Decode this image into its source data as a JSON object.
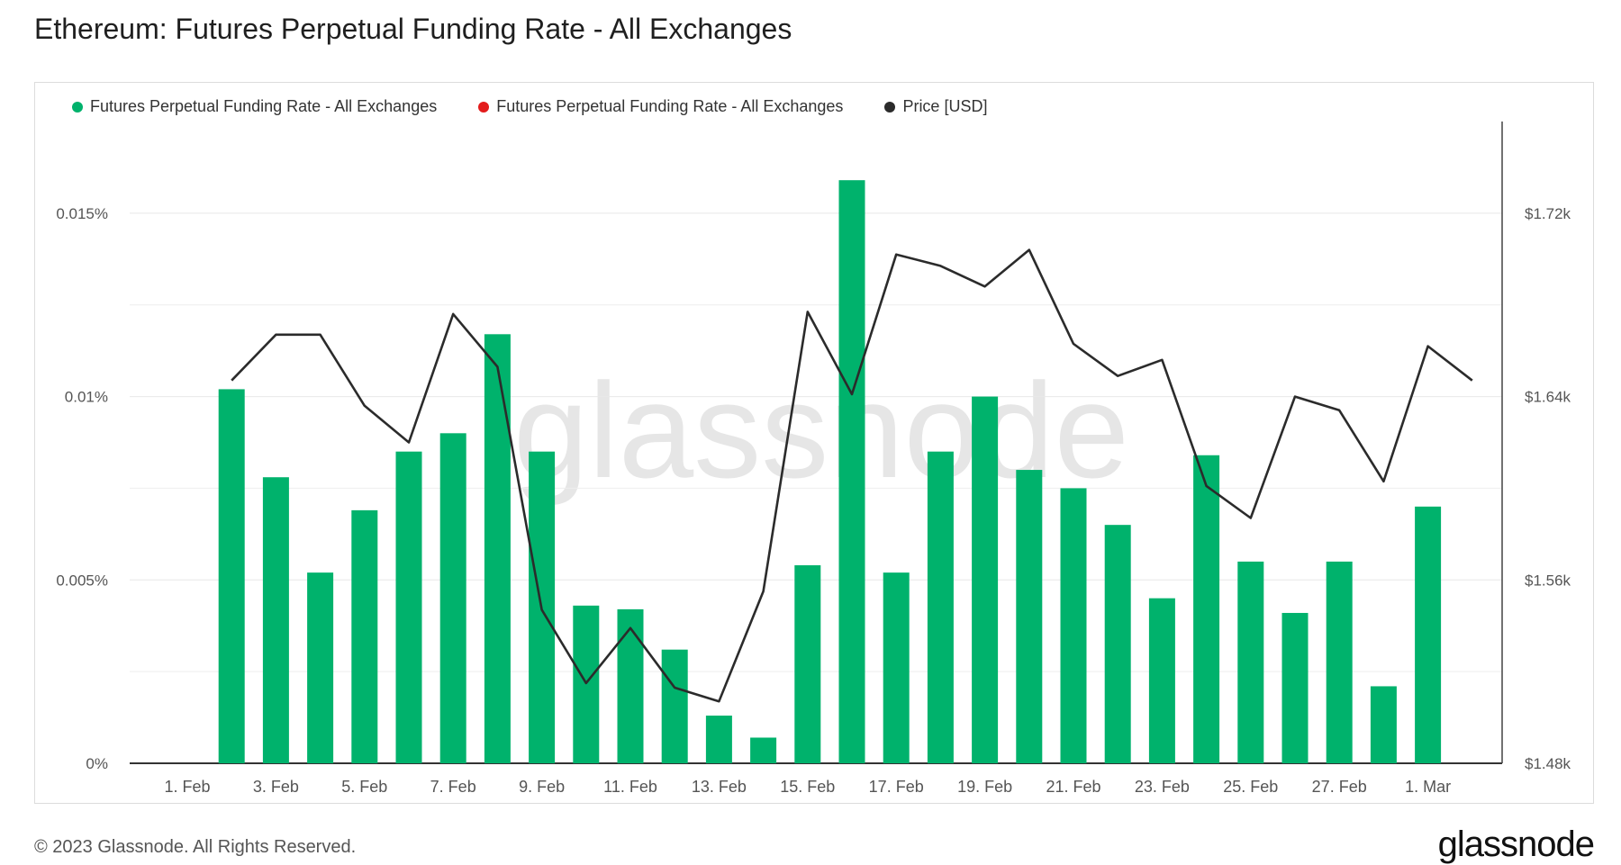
{
  "title": "Ethereum: Futures Perpetual Funding Rate - All Exchanges",
  "footer": "© 2023 Glassnode. All Rights Reserved.",
  "brand": "glassnode",
  "watermark": "glassnode",
  "legend": [
    {
      "label": "Futures Perpetual Funding Rate - All Exchanges",
      "color": "#00b26c"
    },
    {
      "label": "Futures Perpetual Funding Rate - All Exchanges",
      "color": "#e31c1c"
    },
    {
      "label": "Price [USD]",
      "color": "#2b2b2b"
    }
  ],
  "chart_data": {
    "type": "bar",
    "x_ticks": [
      "1. Feb",
      "3. Feb",
      "5. Feb",
      "7. Feb",
      "9. Feb",
      "11. Feb",
      "13. Feb",
      "15. Feb",
      "17. Feb",
      "19. Feb",
      "21. Feb",
      "23. Feb",
      "25. Feb",
      "27. Feb",
      "1. Mar"
    ],
    "y_left": {
      "ticks": [
        "0%",
        "0.005%",
        "0.01%",
        "0.015%"
      ],
      "min": 0,
      "max": 0.0175
    },
    "y_right": {
      "ticks": [
        "$1.48k",
        "$1.56k",
        "$1.64k",
        "$1.72k"
      ],
      "min": 1480,
      "max": 1760
    },
    "dates": [
      "1. Feb",
      "2. Feb",
      "3. Feb",
      "4. Feb",
      "5. Feb",
      "6. Feb",
      "7. Feb",
      "8. Feb",
      "9. Feb",
      "10. Feb",
      "11. Feb",
      "12. Feb",
      "13. Feb",
      "14. Feb",
      "15. Feb",
      "16. Feb",
      "17. Feb",
      "18. Feb",
      "19. Feb",
      "20. Feb",
      "21. Feb",
      "22. Feb",
      "23. Feb",
      "24. Feb",
      "25. Feb",
      "26. Feb",
      "27. Feb",
      "28. Feb",
      "1. Mar",
      "2. Mar"
    ],
    "series": [
      {
        "name": "Futures Perpetual Funding Rate - All Exchanges",
        "type": "bar",
        "color": "#00b26c",
        "axis": "left",
        "values": [
          null,
          0.0102,
          0.0078,
          0.0052,
          0.0069,
          0.0085,
          0.009,
          0.0117,
          0.0085,
          0.0043,
          0.0042,
          0.0031,
          0.0013,
          0.0007,
          0.0054,
          0.0159,
          0.0052,
          0.0085,
          0.01,
          0.008,
          0.0075,
          0.0065,
          0.0045,
          0.0084,
          0.0055,
          0.0041,
          0.0055,
          0.0021,
          0.007,
          null
        ]
      },
      {
        "name": "Price [USD]",
        "type": "line",
        "color": "#2b2b2b",
        "axis": "right",
        "values": [
          null,
          1647,
          1667,
          1667,
          1636,
          1620,
          1676,
          1653,
          1547,
          1515,
          1539,
          1513,
          1507,
          1555,
          1677,
          1641,
          1702,
          1697,
          1688,
          1704,
          1663,
          1649,
          1656,
          1601,
          1587,
          1640,
          1634,
          1603,
          1662,
          1647
        ]
      }
    ],
    "grid": true,
    "legend_position": "top-left"
  }
}
